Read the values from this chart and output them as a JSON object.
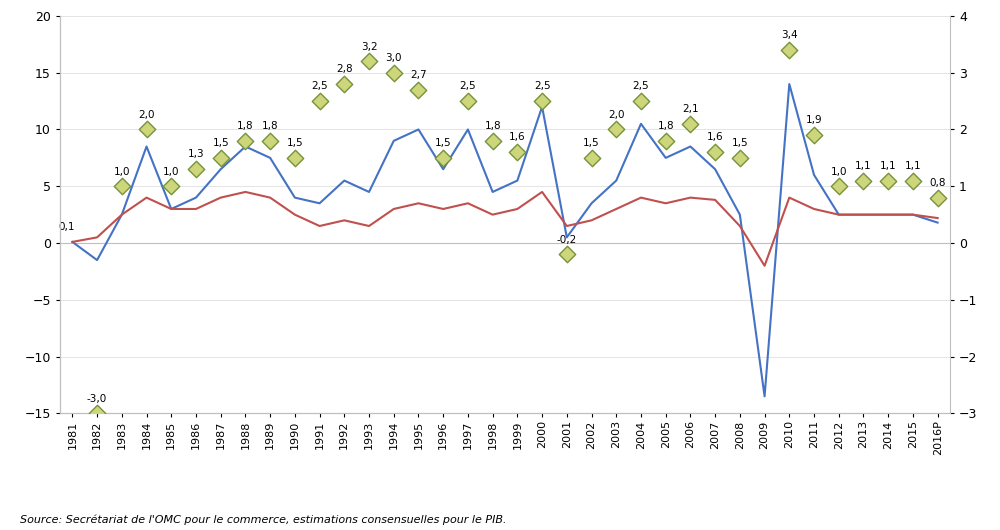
{
  "years": [
    "1981",
    "1982",
    "1983",
    "1984",
    "1985",
    "1986",
    "1987",
    "1988",
    "1989",
    "1990",
    "1991",
    "1992",
    "1993",
    "1994",
    "1995",
    "1996",
    "1997",
    "1998",
    "1999",
    "2000",
    "2001",
    "2002",
    "2003",
    "2004",
    "2005",
    "2006",
    "2007",
    "2008",
    "2009",
    "2010",
    "2011",
    "2012",
    "2013",
    "2014",
    "2015",
    "2016P"
  ],
  "trade_volume": [
    0.1,
    -1.5,
    2.5,
    8.5,
    3.0,
    4.0,
    6.5,
    8.5,
    7.5,
    4.0,
    3.5,
    5.5,
    4.5,
    9.0,
    10.0,
    6.5,
    10.0,
    4.5,
    5.5,
    12.0,
    0.5,
    3.5,
    5.5,
    10.5,
    7.5,
    8.5,
    6.5,
    2.5,
    -13.5,
    14.0,
    6.0,
    2.5,
    2.5,
    2.5,
    2.5,
    1.8
  ],
  "gdp_growth": [
    0.1,
    0.5,
    2.5,
    4.0,
    3.0,
    3.0,
    4.0,
    4.5,
    4.0,
    2.5,
    1.5,
    2.0,
    1.5,
    3.0,
    3.5,
    3.0,
    3.5,
    2.5,
    3.0,
    4.5,
    1.5,
    2.0,
    3.0,
    4.0,
    3.5,
    4.0,
    3.8,
    1.5,
    -2.0,
    4.0,
    3.0,
    2.5,
    2.5,
    2.5,
    2.5,
    2.2
  ],
  "ratio": [
    null,
    -3.0,
    1.0,
    2.0,
    1.0,
    1.3,
    1.5,
    1.8,
    1.8,
    1.5,
    2.5,
    2.8,
    3.2,
    3.0,
    2.7,
    1.5,
    2.5,
    1.8,
    1.6,
    2.5,
    -0.2,
    1.5,
    2.0,
    2.5,
    1.8,
    2.1,
    1.6,
    1.5,
    null,
    3.4,
    1.9,
    1.0,
    1.1,
    1.1,
    1.1,
    0.8
  ],
  "ratio_labels": [
    null,
    "-3,0",
    "1,0",
    "2,0",
    "1,0",
    "1,3",
    "1,5",
    "1,8",
    "1,8",
    "1,5",
    "2,5",
    "2,8",
    "3,2",
    "3,0",
    "2,7",
    "1,5",
    "2,5",
    "1,8",
    "1,6",
    "2,5",
    "-0,2",
    "1,5",
    "2,0",
    "2,5",
    "1,8",
    "2,1",
    "1,6",
    "1,5",
    null,
    "3,4",
    "1,9",
    "1,0",
    "1,1",
    "1,1",
    "1,1",
    "0,8"
  ],
  "trade_label_1981": "0,1",
  "blue_line_color": "#4472C4",
  "red_line_color": "#C0504D",
  "diamond_color_border": "#76933C",
  "diamond_color_fill": "#CDD67B",
  "ylim_left": [
    -15,
    20
  ],
  "ylim_right": [
    -3,
    4
  ],
  "source_text": "Source: Secrétariat de l'OMC pour le commerce, estimations consensuelles pour le PIB.",
  "bg_color": "#FFFFFF",
  "grid_color": "#D9D9D9",
  "spine_color": "#BFBFBF"
}
